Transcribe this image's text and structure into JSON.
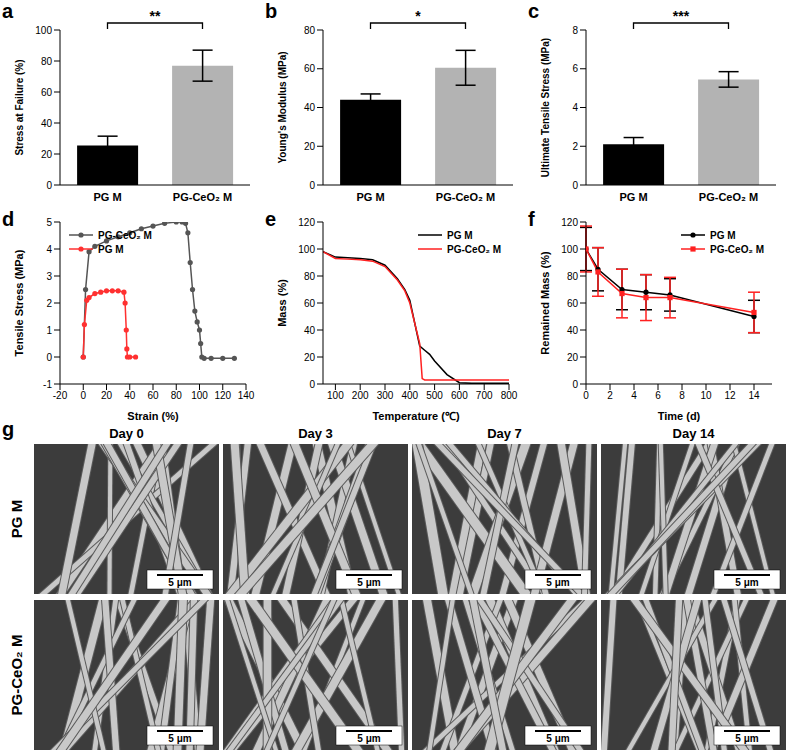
{
  "chart_data": [
    {
      "panel_label": "a",
      "type": "bar",
      "categories": [
        "PG M",
        "PG-CeO₂ M"
      ],
      "values": [
        25.5,
        77
      ],
      "errors": [
        6,
        10
      ],
      "colors": [
        "#000000",
        "#b3b3b3"
      ],
      "y_label": "Stress at Failure (%)",
      "ylim": [
        0,
        100
      ],
      "yticks": [
        0,
        20,
        40,
        60,
        80,
        100
      ],
      "significance": "**",
      "grid": false
    },
    {
      "panel_label": "b",
      "type": "bar",
      "categories": [
        "PG M",
        "PG-CeO₂ M"
      ],
      "values": [
        44,
        60.5
      ],
      "errors": [
        3,
        9
      ],
      "colors": [
        "#000000",
        "#b3b3b3"
      ],
      "y_label": "Young's Modulus (MPa)",
      "ylim": [
        0,
        80
      ],
      "yticks": [
        0,
        20,
        40,
        60,
        80
      ],
      "significance": "*",
      "grid": false
    },
    {
      "panel_label": "c",
      "type": "bar",
      "categories": [
        "PG M",
        "PG-CeO₂ M"
      ],
      "values": [
        2.1,
        5.45
      ],
      "errors": [
        0.35,
        0.4
      ],
      "colors": [
        "#000000",
        "#b3b3b3"
      ],
      "y_label": "Ultimate Tensile Stress (MPa)",
      "ylim": [
        0,
        8
      ],
      "yticks": [
        0,
        2,
        4,
        6,
        8
      ],
      "significance": "***",
      "grid": false
    },
    {
      "panel_label": "d",
      "type": "line",
      "x_label": "Strain (%)",
      "y_label": "Tensile Stress (MPa)",
      "xlim": [
        -20,
        140
      ],
      "xticks": [
        -20,
        0,
        20,
        40,
        60,
        80,
        100,
        120,
        140
      ],
      "ylim": [
        -1,
        5
      ],
      "yticks": [
        -1,
        0,
        1,
        2,
        3,
        4,
        5
      ],
      "legend": "upper left",
      "grid": false,
      "series": [
        {
          "name": "PG-CeO₂ M",
          "color": "#555555",
          "marker": "circle",
          "x": [
            0,
            2,
            5,
            10,
            20,
            30,
            40,
            50,
            60,
            70,
            80,
            85,
            88,
            90,
            92,
            94,
            96,
            98,
            100,
            101,
            102,
            104,
            110,
            120,
            130
          ],
          "values": [
            0,
            2.5,
            3.9,
            4.1,
            4.3,
            4.45,
            4.6,
            4.75,
            4.85,
            4.95,
            5.0,
            5.0,
            4.95,
            4.6,
            3.5,
            2.5,
            1.7,
            1.3,
            1.0,
            0.5,
            0,
            -0.05,
            -0.05,
            -0.05,
            -0.05
          ]
        },
        {
          "name": "PG M",
          "color": "#ff3030",
          "marker": "circle",
          "x": [
            0,
            1,
            3,
            5,
            10,
            15,
            20,
            25,
            30,
            35,
            36,
            37,
            37.5,
            38,
            40,
            45
          ],
          "values": [
            0,
            1.2,
            2.1,
            2.2,
            2.35,
            2.4,
            2.45,
            2.45,
            2.45,
            2.4,
            2.0,
            1.0,
            0.3,
            0,
            0,
            0
          ]
        }
      ]
    },
    {
      "panel_label": "e",
      "type": "line",
      "x_label": "Temperature (℃)",
      "y_label": "Mass (%)",
      "xlim": [
        50,
        800
      ],
      "xticks": [
        100,
        200,
        300,
        400,
        500,
        600,
        700,
        800
      ],
      "ylim": [
        0,
        120
      ],
      "yticks": [
        0,
        20,
        40,
        60,
        80,
        100,
        120
      ],
      "legend": "upper right",
      "grid": false,
      "series": [
        {
          "name": "PG M",
          "color": "#000000",
          "x": [
            50,
            100,
            150,
            200,
            250,
            300,
            350,
            380,
            400,
            420,
            440,
            460,
            480,
            500,
            550,
            600,
            650,
            700,
            800
          ],
          "values": [
            98,
            94,
            93.5,
            93,
            92,
            88,
            78,
            70,
            62,
            45,
            28,
            25,
            22,
            17,
            7,
            1,
            0.5,
            0.5,
            0.5
          ]
        },
        {
          "name": "PG-CeO₂ M",
          "color": "#ff2020",
          "x": [
            50,
            100,
            150,
            200,
            250,
            300,
            350,
            380,
            400,
            420,
            440,
            450,
            460,
            500,
            600,
            700,
            800
          ],
          "values": [
            98,
            93,
            92.5,
            92,
            91,
            87,
            77,
            69,
            60,
            45,
            30,
            4,
            3,
            3,
            3,
            3,
            3
          ]
        }
      ]
    },
    {
      "panel_label": "f",
      "type": "line",
      "x_label": "Time (d)",
      "y_label": "Remained Mass (%)",
      "xlim": [
        0,
        15.5
      ],
      "xticks": [
        0,
        2,
        4,
        6,
        8,
        10,
        12,
        14
      ],
      "ylim": [
        0,
        120
      ],
      "yticks": [
        0,
        20,
        40,
        60,
        80,
        100,
        120
      ],
      "legend": "upper right",
      "grid": false,
      "series": [
        {
          "name": "PG M",
          "color": "#000000",
          "marker": "circle",
          "x": [
            0,
            1,
            3,
            5,
            7,
            14
          ],
          "values": [
            100,
            85,
            70,
            68,
            66,
            50
          ],
          "errors": [
            16,
            16,
            15,
            13,
            12,
            12
          ]
        },
        {
          "name": "PG-CeO₂ M",
          "color": "#ff2020",
          "marker": "square",
          "x": [
            0,
            1,
            3,
            5,
            7,
            14
          ],
          "values": [
            100,
            83,
            67,
            64,
            64,
            53
          ],
          "errors": [
            17,
            18,
            18,
            17,
            15,
            15
          ]
        }
      ]
    }
  ],
  "panel_g": {
    "panel_label": "g",
    "columns": [
      "Day 0",
      "Day 3",
      "Day 7",
      "Day 14"
    ],
    "rows": [
      "PG M",
      "PG-CeO₂ M"
    ],
    "scale_bar": "5 μm"
  }
}
